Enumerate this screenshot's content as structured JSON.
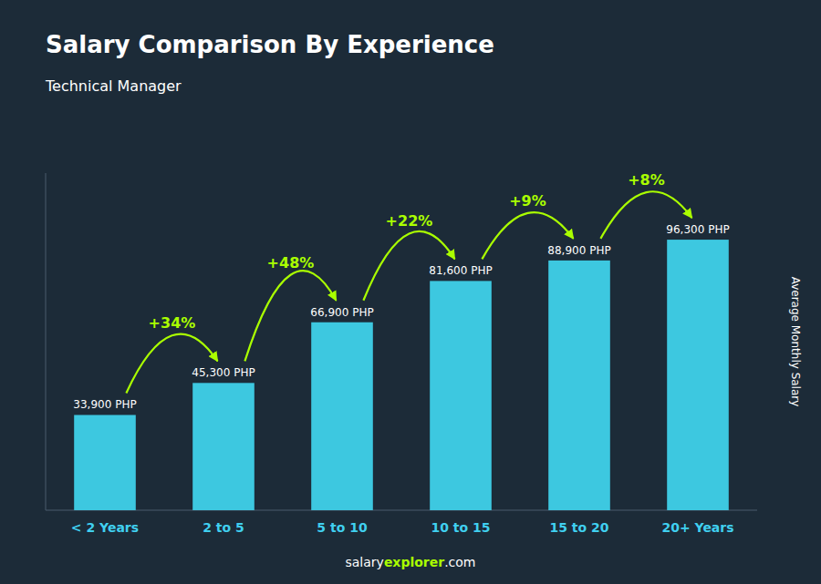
{
  "chart_data": {
    "type": "bar",
    "title": "Salary Comparison By Experience",
    "subtitle": "Technical Manager",
    "categories": [
      "< 2 Years",
      "2 to 5",
      "5 to 10",
      "10 to 15",
      "15 to 20",
      "20+ Years"
    ],
    "values": [
      33900,
      45300,
      66900,
      81600,
      88900,
      96300
    ],
    "value_labels": [
      "33,900 PHP",
      "45,300 PHP",
      "66,900 PHP",
      "81,600 PHP",
      "88,900 PHP",
      "96,300 PHP"
    ],
    "data_labels": true,
    "color": "#3dc8e0",
    "ylabel": "Average Monthly Salary",
    "ylim": [
      0,
      120000
    ],
    "tick_labels": "x",
    "grid": false,
    "annotations": [
      {
        "from": "< 2 Years",
        "to": "2 to 5",
        "text": "+34%",
        "color": "#aaff00"
      },
      {
        "from": "2 to 5",
        "to": "5 to 10",
        "text": "+48%",
        "color": "#aaff00"
      },
      {
        "from": "5 to 10",
        "to": "10 to 15",
        "text": "+22%",
        "color": "#aaff00"
      },
      {
        "from": "10 to 15",
        "to": "15 to 20",
        "text": "+9%",
        "color": "#aaff00"
      },
      {
        "from": "15 to 20",
        "to": "20+ Years",
        "text": "+8%",
        "color": "#aaff00"
      }
    ],
    "footer": [
      "salary",
      "explorer",
      ".com"
    ]
  }
}
